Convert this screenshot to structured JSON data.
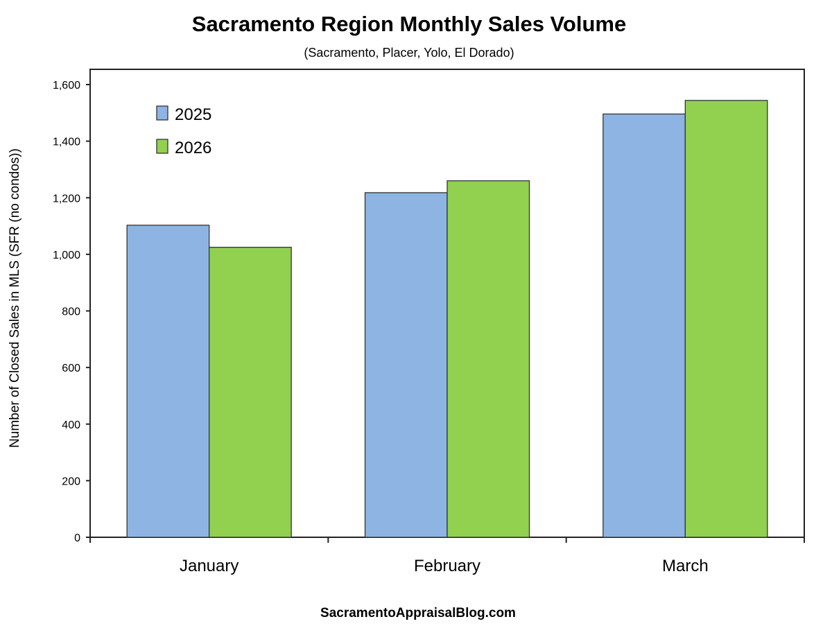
{
  "chart_data": {
    "type": "bar",
    "title": "Sacramento Region Monthly Sales Volume",
    "subtitle": "(Sacramento, Placer, Yolo, El Dorado)",
    "xlabel": "",
    "ylabel": "Number of Closed Sales in MLS (SFR (no condos))",
    "ylim": [
      0,
      1600
    ],
    "yticks": [
      0,
      200,
      400,
      600,
      800,
      1000,
      1200,
      1400,
      1600
    ],
    "ytick_labels": [
      "0",
      "200",
      "400",
      "600",
      "800",
      "1,000",
      "1,200",
      "1,400",
      "1,600"
    ],
    "categories": [
      "January",
      "February",
      "March"
    ],
    "series": [
      {
        "name": "2025",
        "values": [
          1103,
          1218,
          1496
        ],
        "color": "#8eb4e3"
      },
      {
        "name": "2026",
        "values": [
          1025,
          1260,
          1544
        ],
        "color": "#92d050"
      }
    ],
    "grid": false,
    "legend_position": "top-left",
    "footer": "SacramentoAppraisalBlog.com"
  }
}
